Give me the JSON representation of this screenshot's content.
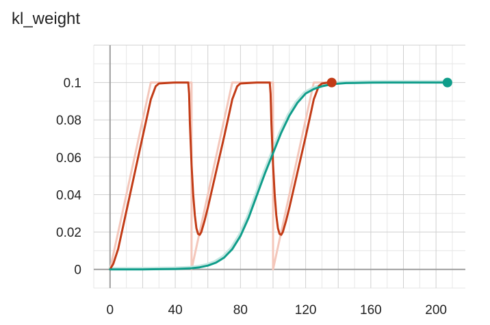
{
  "chart_data": {
    "type": "line",
    "title": "kl_weight",
    "xlabel": "",
    "ylabel": "",
    "xlim": [
      -10,
      218
    ],
    "ylim": [
      -0.01,
      0.12
    ],
    "x_ticks": [
      0,
      40,
      80,
      120,
      160,
      200
    ],
    "x_tick_labels": [
      "0",
      "40",
      "80",
      "120",
      "160",
      "200"
    ],
    "y_ticks": [
      0,
      0.02,
      0.04,
      0.06,
      0.08,
      0.1
    ],
    "y_tick_labels": [
      "0",
      "0.02",
      "0.04",
      "0.06",
      "0.08",
      "0.1"
    ],
    "grid": true,
    "series": [
      {
        "color": "#c23b16",
        "raw_color": "#f4c7bb",
        "end_marker": true,
        "x": [
          0,
          2,
          5,
          10,
          15,
          20,
          23,
          25,
          28,
          30,
          40,
          48,
          48.5,
          49,
          50,
          51,
          52,
          53,
          54,
          55,
          56,
          58,
          60,
          65,
          70,
          73,
          75,
          78,
          80,
          90,
          98,
          98.5,
          99,
          100,
          101,
          102,
          103,
          104,
          105,
          106,
          108,
          110,
          115,
          120,
          123,
          125,
          128,
          130,
          134,
          136
        ],
        "y": [
          0,
          0.003,
          0.011,
          0.031,
          0.051,
          0.071,
          0.083,
          0.091,
          0.098,
          0.0995,
          0.1,
          0.1,
          0.094,
          0.078,
          0.056,
          0.04,
          0.029,
          0.022,
          0.019,
          0.0185,
          0.02,
          0.026,
          0.033,
          0.052,
          0.071,
          0.083,
          0.091,
          0.098,
          0.0995,
          0.1,
          0.1,
          0.094,
          0.078,
          0.056,
          0.04,
          0.029,
          0.022,
          0.019,
          0.0185,
          0.02,
          0.026,
          0.033,
          0.052,
          0.071,
          0.083,
          0.091,
          0.098,
          0.0995,
          0.1,
          0.1
        ],
        "raw_x": [
          0,
          25,
          50,
          50,
          75,
          100,
          100,
          125,
          136
        ],
        "raw_y": [
          0,
          0.1,
          0.1,
          0,
          0.1,
          0.1,
          0,
          0.1,
          0.1
        ]
      },
      {
        "color": "#0f9d8a",
        "raw_color": "#c6e7e2",
        "end_marker": true,
        "x": [
          0,
          10,
          20,
          30,
          40,
          50,
          55,
          60,
          65,
          70,
          75,
          80,
          85,
          90,
          95,
          100,
          105,
          110,
          115,
          120,
          125,
          130,
          135,
          140,
          145,
          150,
          160,
          170,
          180,
          190,
          200,
          207
        ],
        "y": [
          0,
          0,
          0,
          0.0001,
          0.0002,
          0.0006,
          0.0011,
          0.002,
          0.0036,
          0.0063,
          0.0108,
          0.0178,
          0.0276,
          0.0395,
          0.0513,
          0.0622,
          0.0731,
          0.0822,
          0.0892,
          0.0941,
          0.0965,
          0.098,
          0.0989,
          0.0994,
          0.0997,
          0.0998,
          0.09995,
          0.1,
          0.1,
          0.1,
          0.1,
          0.1
        ]
      }
    ]
  }
}
